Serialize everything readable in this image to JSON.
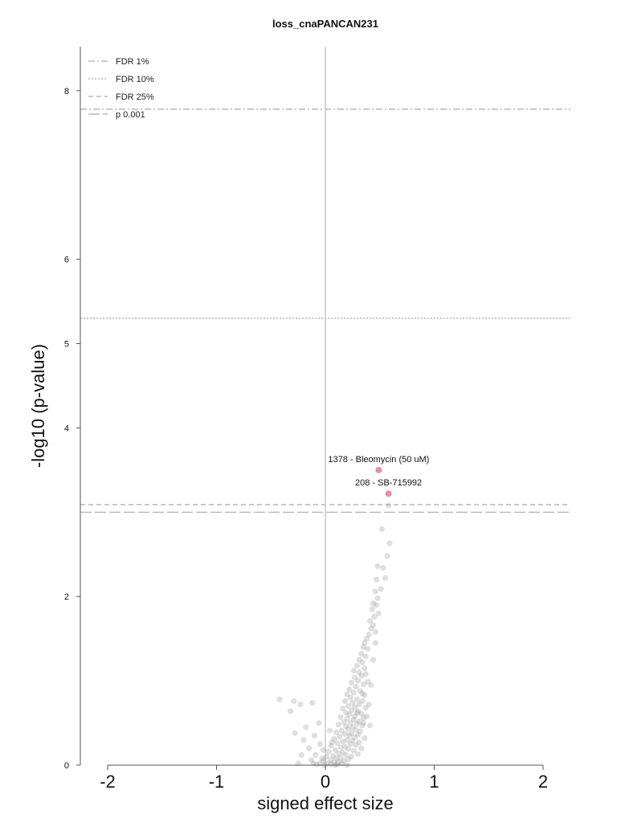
{
  "chart_data": {
    "type": "scatter",
    "title": "loss_cnaPANCAN231",
    "xlabel": "signed effect size",
    "ylabel": "-log10 (p-value)",
    "xlim": [
      -2.25,
      2.25
    ],
    "ylim": [
      0,
      8.6
    ],
    "x_ticks": [
      -2,
      -1,
      0,
      1,
      2
    ],
    "x_tick_labels": [
      "-2",
      "-1",
      "0",
      "1",
      "2"
    ],
    "y_ticks": [
      0,
      2,
      4,
      5,
      6,
      8
    ],
    "y_tick_labels": [
      "0",
      "2",
      "4",
      "5",
      "6",
      "8"
    ],
    "grid": false,
    "legend_position": "top-left",
    "colors": {
      "background_point": "#9a9a9a",
      "highlight_point": "#e8909c",
      "threshold_line": "#aaaaaa",
      "zero_line": "#c8c8c8",
      "axis": "#555555"
    },
    "thresholds": [
      {
        "name": "FDR 1%",
        "y": 7.78,
        "dash": "8,3,2,3"
      },
      {
        "name": "FDR 10%",
        "y": 5.3,
        "dash": "2,2"
      },
      {
        "name": "FDR 25%",
        "y": 3.09,
        "dash": "6,4"
      },
      {
        "name": "p 0.001",
        "y": 3.0,
        "dash": "14,4"
      }
    ],
    "highlighted": [
      {
        "label": "1378 - Bleomycin (50 uM)",
        "x": 0.49,
        "y": 3.5
      },
      {
        "label": "208 - SB-715992",
        "x": 0.58,
        "y": 3.22
      }
    ],
    "points": [
      [
        0.58,
        3.08
      ],
      [
        0.52,
        2.8
      ],
      [
        0.59,
        2.63
      ],
      [
        0.57,
        2.48
      ],
      [
        0.48,
        2.36
      ],
      [
        0.53,
        2.34
      ],
      [
        0.55,
        2.22
      ],
      [
        0.47,
        2.2
      ],
      [
        0.51,
        2.09
      ],
      [
        0.46,
        2.06
      ],
      [
        0.48,
        1.98
      ],
      [
        0.44,
        1.92
      ],
      [
        0.47,
        1.9
      ],
      [
        0.43,
        1.85
      ],
      [
        0.49,
        1.8
      ],
      [
        0.45,
        1.76
      ],
      [
        0.41,
        1.71
      ],
      [
        0.44,
        1.66
      ],
      [
        0.42,
        1.62
      ],
      [
        0.46,
        1.58
      ],
      [
        0.4,
        1.55
      ],
      [
        0.38,
        1.5
      ],
      [
        0.36,
        1.45
      ],
      [
        0.35,
        1.4
      ],
      [
        0.39,
        1.38
      ],
      [
        0.33,
        1.32
      ],
      [
        0.37,
        1.29
      ],
      [
        0.31,
        1.25
      ],
      [
        0.34,
        1.22
      ],
      [
        0.29,
        1.18
      ],
      [
        0.36,
        1.15
      ],
      [
        0.26,
        1.12
      ],
      [
        0.31,
        1.1
      ],
      [
        0.33,
        1.06
      ],
      [
        0.27,
        1.04
      ],
      [
        0.3,
        1.0
      ],
      [
        0.24,
        0.98
      ],
      [
        0.35,
        0.96
      ],
      [
        0.28,
        0.93
      ],
      [
        0.22,
        0.9
      ],
      [
        0.32,
        0.88
      ],
      [
        0.26,
        0.86
      ],
      [
        0.2,
        0.84
      ],
      [
        0.36,
        0.83
      ],
      [
        0.23,
        0.8
      ],
      [
        0.29,
        0.78
      ],
      [
        0.34,
        0.76
      ],
      [
        0.18,
        0.76
      ],
      [
        0.25,
        0.74
      ],
      [
        0.31,
        0.72
      ],
      [
        0.21,
        0.7
      ],
      [
        0.27,
        0.69
      ],
      [
        0.37,
        0.68
      ],
      [
        0.16,
        0.67
      ],
      [
        0.24,
        0.65
      ],
      [
        0.3,
        0.64
      ],
      [
        0.19,
        0.62
      ],
      [
        0.33,
        0.61
      ],
      [
        0.22,
        0.6
      ],
      [
        0.27,
        0.58
      ],
      [
        0.14,
        0.57
      ],
      [
        0.35,
        0.56
      ],
      [
        0.2,
        0.55
      ],
      [
        0.26,
        0.54
      ],
      [
        0.31,
        0.52
      ],
      [
        0.17,
        0.51
      ],
      [
        0.23,
        0.5
      ],
      [
        0.29,
        0.49
      ],
      [
        0.12,
        0.48
      ],
      [
        0.34,
        0.47
      ],
      [
        0.19,
        0.46
      ],
      [
        0.25,
        0.45
      ],
      [
        0.21,
        0.43
      ],
      [
        0.28,
        0.42
      ],
      [
        0.15,
        0.41
      ],
      [
        0.32,
        0.4
      ],
      [
        0.1,
        0.39
      ],
      [
        0.24,
        0.38
      ],
      [
        0.18,
        0.37
      ],
      [
        0.3,
        0.36
      ],
      [
        0.22,
        0.35
      ],
      [
        0.13,
        0.34
      ],
      [
        0.27,
        0.33
      ],
      [
        0.36,
        0.32
      ],
      [
        0.08,
        0.31
      ],
      [
        0.2,
        0.3
      ],
      [
        0.25,
        0.29
      ],
      [
        0.16,
        0.28
      ],
      [
        0.31,
        0.27
      ],
      [
        0.11,
        0.26
      ],
      [
        0.23,
        0.25
      ],
      [
        0.28,
        0.24
      ],
      [
        0.05,
        0.23
      ],
      [
        0.18,
        0.22
      ],
      [
        0.14,
        0.21
      ],
      [
        0.33,
        0.2
      ],
      [
        0.21,
        0.19
      ],
      [
        0.09,
        0.18
      ],
      [
        0.26,
        0.17
      ],
      [
        0.03,
        0.16
      ],
      [
        0.16,
        0.15
      ],
      [
        0.12,
        0.14
      ],
      [
        0.3,
        0.13
      ],
      [
        0.19,
        0.12
      ],
      [
        0.07,
        0.11
      ],
      [
        0.24,
        0.1
      ],
      [
        0.01,
        0.1
      ],
      [
        0.14,
        0.09
      ],
      [
        0.1,
        0.08
      ],
      [
        0.21,
        0.07
      ],
      [
        0.05,
        0.06
      ],
      [
        0.17,
        0.05
      ],
      [
        -0.02,
        0.05
      ],
      [
        0.12,
        0.04
      ],
      [
        0.08,
        0.03
      ],
      [
        0.02,
        0.02
      ],
      [
        0.15,
        0.02
      ],
      [
        -0.05,
        0.02
      ],
      [
        0.05,
        0.01
      ],
      [
        0.11,
        0.01
      ],
      [
        -0.08,
        0.01
      ],
      [
        -0.01,
        0.0
      ],
      [
        0.2,
        0.0
      ],
      [
        0.09,
        0.0
      ],
      [
        -0.42,
        0.78
      ],
      [
        -0.29,
        0.76
      ],
      [
        -0.23,
        0.72
      ],
      [
        -0.12,
        0.74
      ],
      [
        -0.32,
        0.64
      ],
      [
        -0.06,
        0.5
      ],
      [
        -0.18,
        0.45
      ],
      [
        -0.28,
        0.38
      ],
      [
        -0.1,
        0.35
      ],
      [
        -0.2,
        0.3
      ],
      [
        -0.05,
        0.25
      ],
      [
        -0.15,
        0.2
      ],
      [
        -0.02,
        0.18
      ],
      [
        -0.22,
        0.12
      ],
      [
        -0.09,
        0.12
      ],
      [
        -0.13,
        0.06
      ],
      [
        -0.03,
        0.08
      ],
      [
        -0.25,
        0.02
      ],
      [
        -0.11,
        0.02
      ],
      [
        0.06,
        0.27
      ],
      [
        0.04,
        0.41
      ],
      [
        0.38,
        0.58
      ],
      [
        0.4,
        0.72
      ],
      [
        0.42,
        0.95
      ],
      [
        0.44,
        1.25
      ],
      [
        0.46,
        1.45
      ],
      [
        0.39,
        0.99
      ],
      [
        0.35,
        0.5
      ],
      [
        0.41,
        0.47
      ],
      [
        0.29,
        0.62
      ],
      [
        0.34,
        0.85
      ],
      [
        0.37,
        1.08
      ]
    ]
  }
}
